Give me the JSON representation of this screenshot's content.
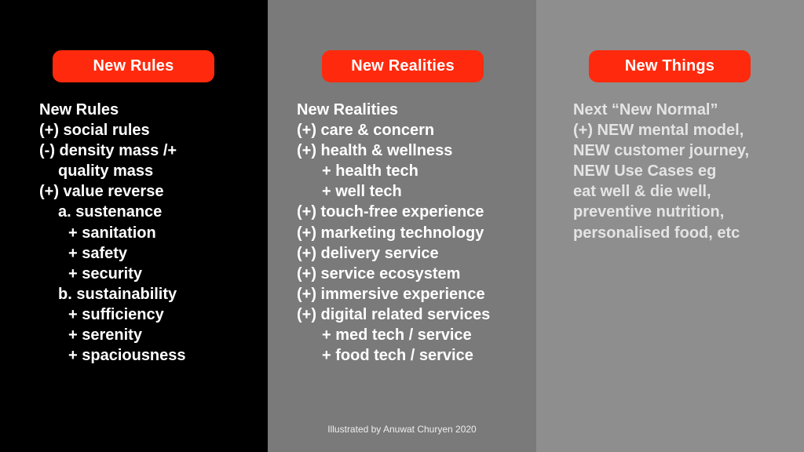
{
  "columns": [
    {
      "header": "New Rules",
      "lines": [
        "New Rules",
        "(+) social rules",
        "(-) density mass /+",
        "quality mass",
        "(+) value reverse",
        "a. sustenance",
        "+ sanitation",
        "+ safety",
        "+ security",
        "b. sustainability",
        "+ sufficiency",
        "+ serenity",
        "+ spaciousness"
      ]
    },
    {
      "header": "New Realities",
      "lines": [
        "New Realities",
        "(+) care & concern",
        "(+) health & wellness",
        "+ health tech",
        "+ well tech",
        "(+) touch-free experience",
        "(+) marketing technology",
        "(+) delivery service",
        "(+) service ecosystem",
        "(+) immersive experience",
        "(+) digital related services",
        "+ med tech / service",
        "+ food tech / service"
      ]
    },
    {
      "header": "New Things",
      "lines": [
        "Next “New Normal”",
        "(+) NEW mental model,",
        "NEW customer journey,",
        "NEW Use Cases eg",
        "eat well & die well,",
        "preventive nutrition,",
        "personalised food, etc"
      ]
    }
  ],
  "credit": "Illustrated by Anuwat Churyen 2020",
  "colors": {
    "panel_1": "#000000",
    "panel_2": "#7a7a7a",
    "panel_3": "#8e8e8e",
    "pill": "#ff2a0d"
  }
}
